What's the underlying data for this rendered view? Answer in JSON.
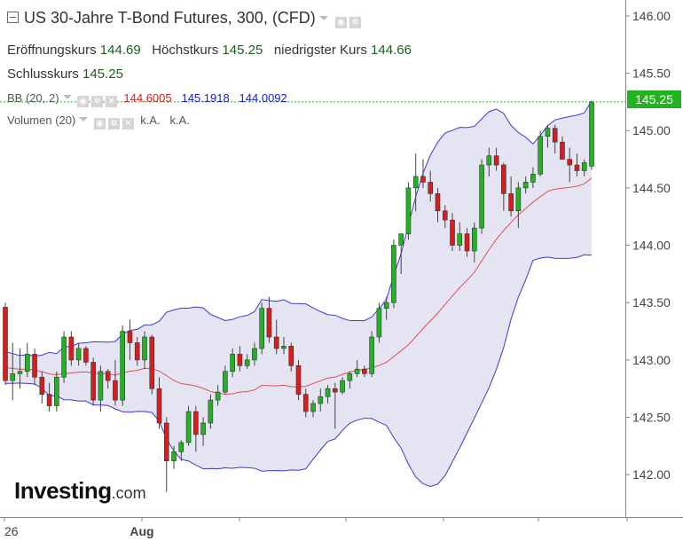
{
  "title": "US 30-Jahre T-Bond Futures, 300, (CFD)",
  "ohlc": {
    "open_label": "Eröffnungskurs",
    "open": "144.69",
    "high_label": "Höchstkurs",
    "high": "145.25",
    "low_label": "niedrigster Kurs",
    "low": "144.66",
    "close_label": "Schlusskurs",
    "close": "145.25"
  },
  "bb": {
    "label": "BB (20, 2)",
    "mid": "144.6005",
    "upper": "145.1918",
    "lower": "144.0092"
  },
  "volume": {
    "label": "Volumen (20)",
    "val1": "k.A.",
    "val2": "k.A."
  },
  "last_price": "145.25",
  "logo": {
    "main": "Investing",
    "suffix": ".com"
  },
  "colors": {
    "up": "#22b322",
    "down": "#d91c1c",
    "band_fill": "#e4e4f2",
    "band_line": "#3b3bd6",
    "ma_line": "#e05050",
    "last_line": "#22b322"
  },
  "chart_data": {
    "type": "candlestick",
    "x_tick_labels": [
      "26",
      "Aug",
      "",
      "",
      "",
      "",
      ""
    ],
    "y_ticks": [
      "142.00",
      "142.50",
      "143.00",
      "143.50",
      "144.00",
      "144.50",
      "145.00",
      "145.50",
      "146.00"
    ],
    "ylim": [
      141.63,
      146.1
    ],
    "candles": [
      [
        143.46,
        143.5,
        142.78,
        142.82
      ],
      [
        142.82,
        143.15,
        142.65,
        142.88
      ],
      [
        142.88,
        143.1,
        142.75,
        142.9
      ],
      [
        142.9,
        143.15,
        142.85,
        143.05
      ],
      [
        143.05,
        143.1,
        142.78,
        142.85
      ],
      [
        142.85,
        142.9,
        142.62,
        142.7
      ],
      [
        142.7,
        142.8,
        142.55,
        142.6
      ],
      [
        142.6,
        142.9,
        142.55,
        142.85
      ],
      [
        142.85,
        143.25,
        142.8,
        143.2
      ],
      [
        143.2,
        143.25,
        142.95,
        143.0
      ],
      [
        143.0,
        143.15,
        142.95,
        143.1
      ],
      [
        143.1,
        143.12,
        142.95,
        142.98
      ],
      [
        142.98,
        143.02,
        142.6,
        142.65
      ],
      [
        142.65,
        142.95,
        142.55,
        142.9
      ],
      [
        142.9,
        142.92,
        142.75,
        142.82
      ],
      [
        142.82,
        143.0,
        142.6,
        142.65
      ],
      [
        142.65,
        143.3,
        142.6,
        143.25
      ],
      [
        143.25,
        143.35,
        143.0,
        143.15
      ],
      [
        143.15,
        143.2,
        142.95,
        143.0
      ],
      [
        143.0,
        143.25,
        142.92,
        143.2
      ],
      [
        143.2,
        143.22,
        142.7,
        142.75
      ],
      [
        142.75,
        142.85,
        142.4,
        142.45
      ],
      [
        142.45,
        142.5,
        141.85,
        142.12
      ],
      [
        142.12,
        142.25,
        142.05,
        142.2
      ],
      [
        142.2,
        142.3,
        142.12,
        142.28
      ],
      [
        142.28,
        142.6,
        142.25,
        142.55
      ],
      [
        142.55,
        142.6,
        142.2,
        142.35
      ],
      [
        142.35,
        142.5,
        142.25,
        142.45
      ],
      [
        142.45,
        142.7,
        142.4,
        142.65
      ],
      [
        142.65,
        142.78,
        142.6,
        142.72
      ],
      [
        142.72,
        142.95,
        142.7,
        142.9
      ],
      [
        142.9,
        143.1,
        142.85,
        143.05
      ],
      [
        143.05,
        143.12,
        142.9,
        142.95
      ],
      [
        142.95,
        143.05,
        142.92,
        143.0
      ],
      [
        143.0,
        143.15,
        142.95,
        143.1
      ],
      [
        143.1,
        143.5,
        143.05,
        143.45
      ],
      [
        143.45,
        143.55,
        143.15,
        143.2
      ],
      [
        143.2,
        143.35,
        143.05,
        143.1
      ],
      [
        143.1,
        143.2,
        143.05,
        143.12
      ],
      [
        143.12,
        143.15,
        142.9,
        142.95
      ],
      [
        142.95,
        143.0,
        142.65,
        142.7
      ],
      [
        142.7,
        142.75,
        142.5,
        142.55
      ],
      [
        142.55,
        142.65,
        142.5,
        142.62
      ],
      [
        142.62,
        142.75,
        142.55,
        142.68
      ],
      [
        142.68,
        142.78,
        142.62,
        142.75
      ],
      [
        142.75,
        142.8,
        142.4,
        142.72
      ],
      [
        142.72,
        142.85,
        142.7,
        142.82
      ],
      [
        142.82,
        142.9,
        142.75,
        142.88
      ],
      [
        142.88,
        143.0,
        142.85,
        142.92
      ],
      [
        142.92,
        142.95,
        142.85,
        142.88
      ],
      [
        142.88,
        143.25,
        142.85,
        143.2
      ],
      [
        143.2,
        143.5,
        143.15,
        143.45
      ],
      [
        143.45,
        143.55,
        143.35,
        143.5
      ],
      [
        143.5,
        144.05,
        143.45,
        144.0
      ],
      [
        144.0,
        144.1,
        143.75,
        144.1
      ],
      [
        144.1,
        144.55,
        144.05,
        144.5
      ],
      [
        144.5,
        144.8,
        144.3,
        144.6
      ],
      [
        144.6,
        144.75,
        144.5,
        144.55
      ],
      [
        144.55,
        144.65,
        144.38,
        144.45
      ],
      [
        144.45,
        144.5,
        144.2,
        144.3
      ],
      [
        144.3,
        144.35,
        144.15,
        144.22
      ],
      [
        144.22,
        144.28,
        143.95,
        144.0
      ],
      [
        144.0,
        144.2,
        143.95,
        144.1
      ],
      [
        144.1,
        144.15,
        143.9,
        143.95
      ],
      [
        143.95,
        144.2,
        143.85,
        144.15
      ],
      [
        144.15,
        144.75,
        144.1,
        144.7
      ],
      [
        144.7,
        144.85,
        144.6,
        144.78
      ],
      [
        144.78,
        144.85,
        144.65,
        144.7
      ],
      [
        144.7,
        144.72,
        144.3,
        144.45
      ],
      [
        144.45,
        144.6,
        144.25,
        144.3
      ],
      [
        144.3,
        144.55,
        144.15,
        144.5
      ],
      [
        144.5,
        144.6,
        144.45,
        144.55
      ],
      [
        144.55,
        144.68,
        144.5,
        144.62
      ],
      [
        144.62,
        145.0,
        144.6,
        144.95
      ],
      [
        144.95,
        145.05,
        144.85,
        145.02
      ],
      [
        145.02,
        145.05,
        144.8,
        144.9
      ],
      [
        144.9,
        144.95,
        144.75,
        144.75
      ],
      [
        144.75,
        144.85,
        144.55,
        144.7
      ],
      [
        144.7,
        144.8,
        144.6,
        144.65
      ],
      [
        144.65,
        144.75,
        144.6,
        144.72
      ],
      [
        144.69,
        145.25,
        144.66,
        145.25
      ]
    ]
  }
}
